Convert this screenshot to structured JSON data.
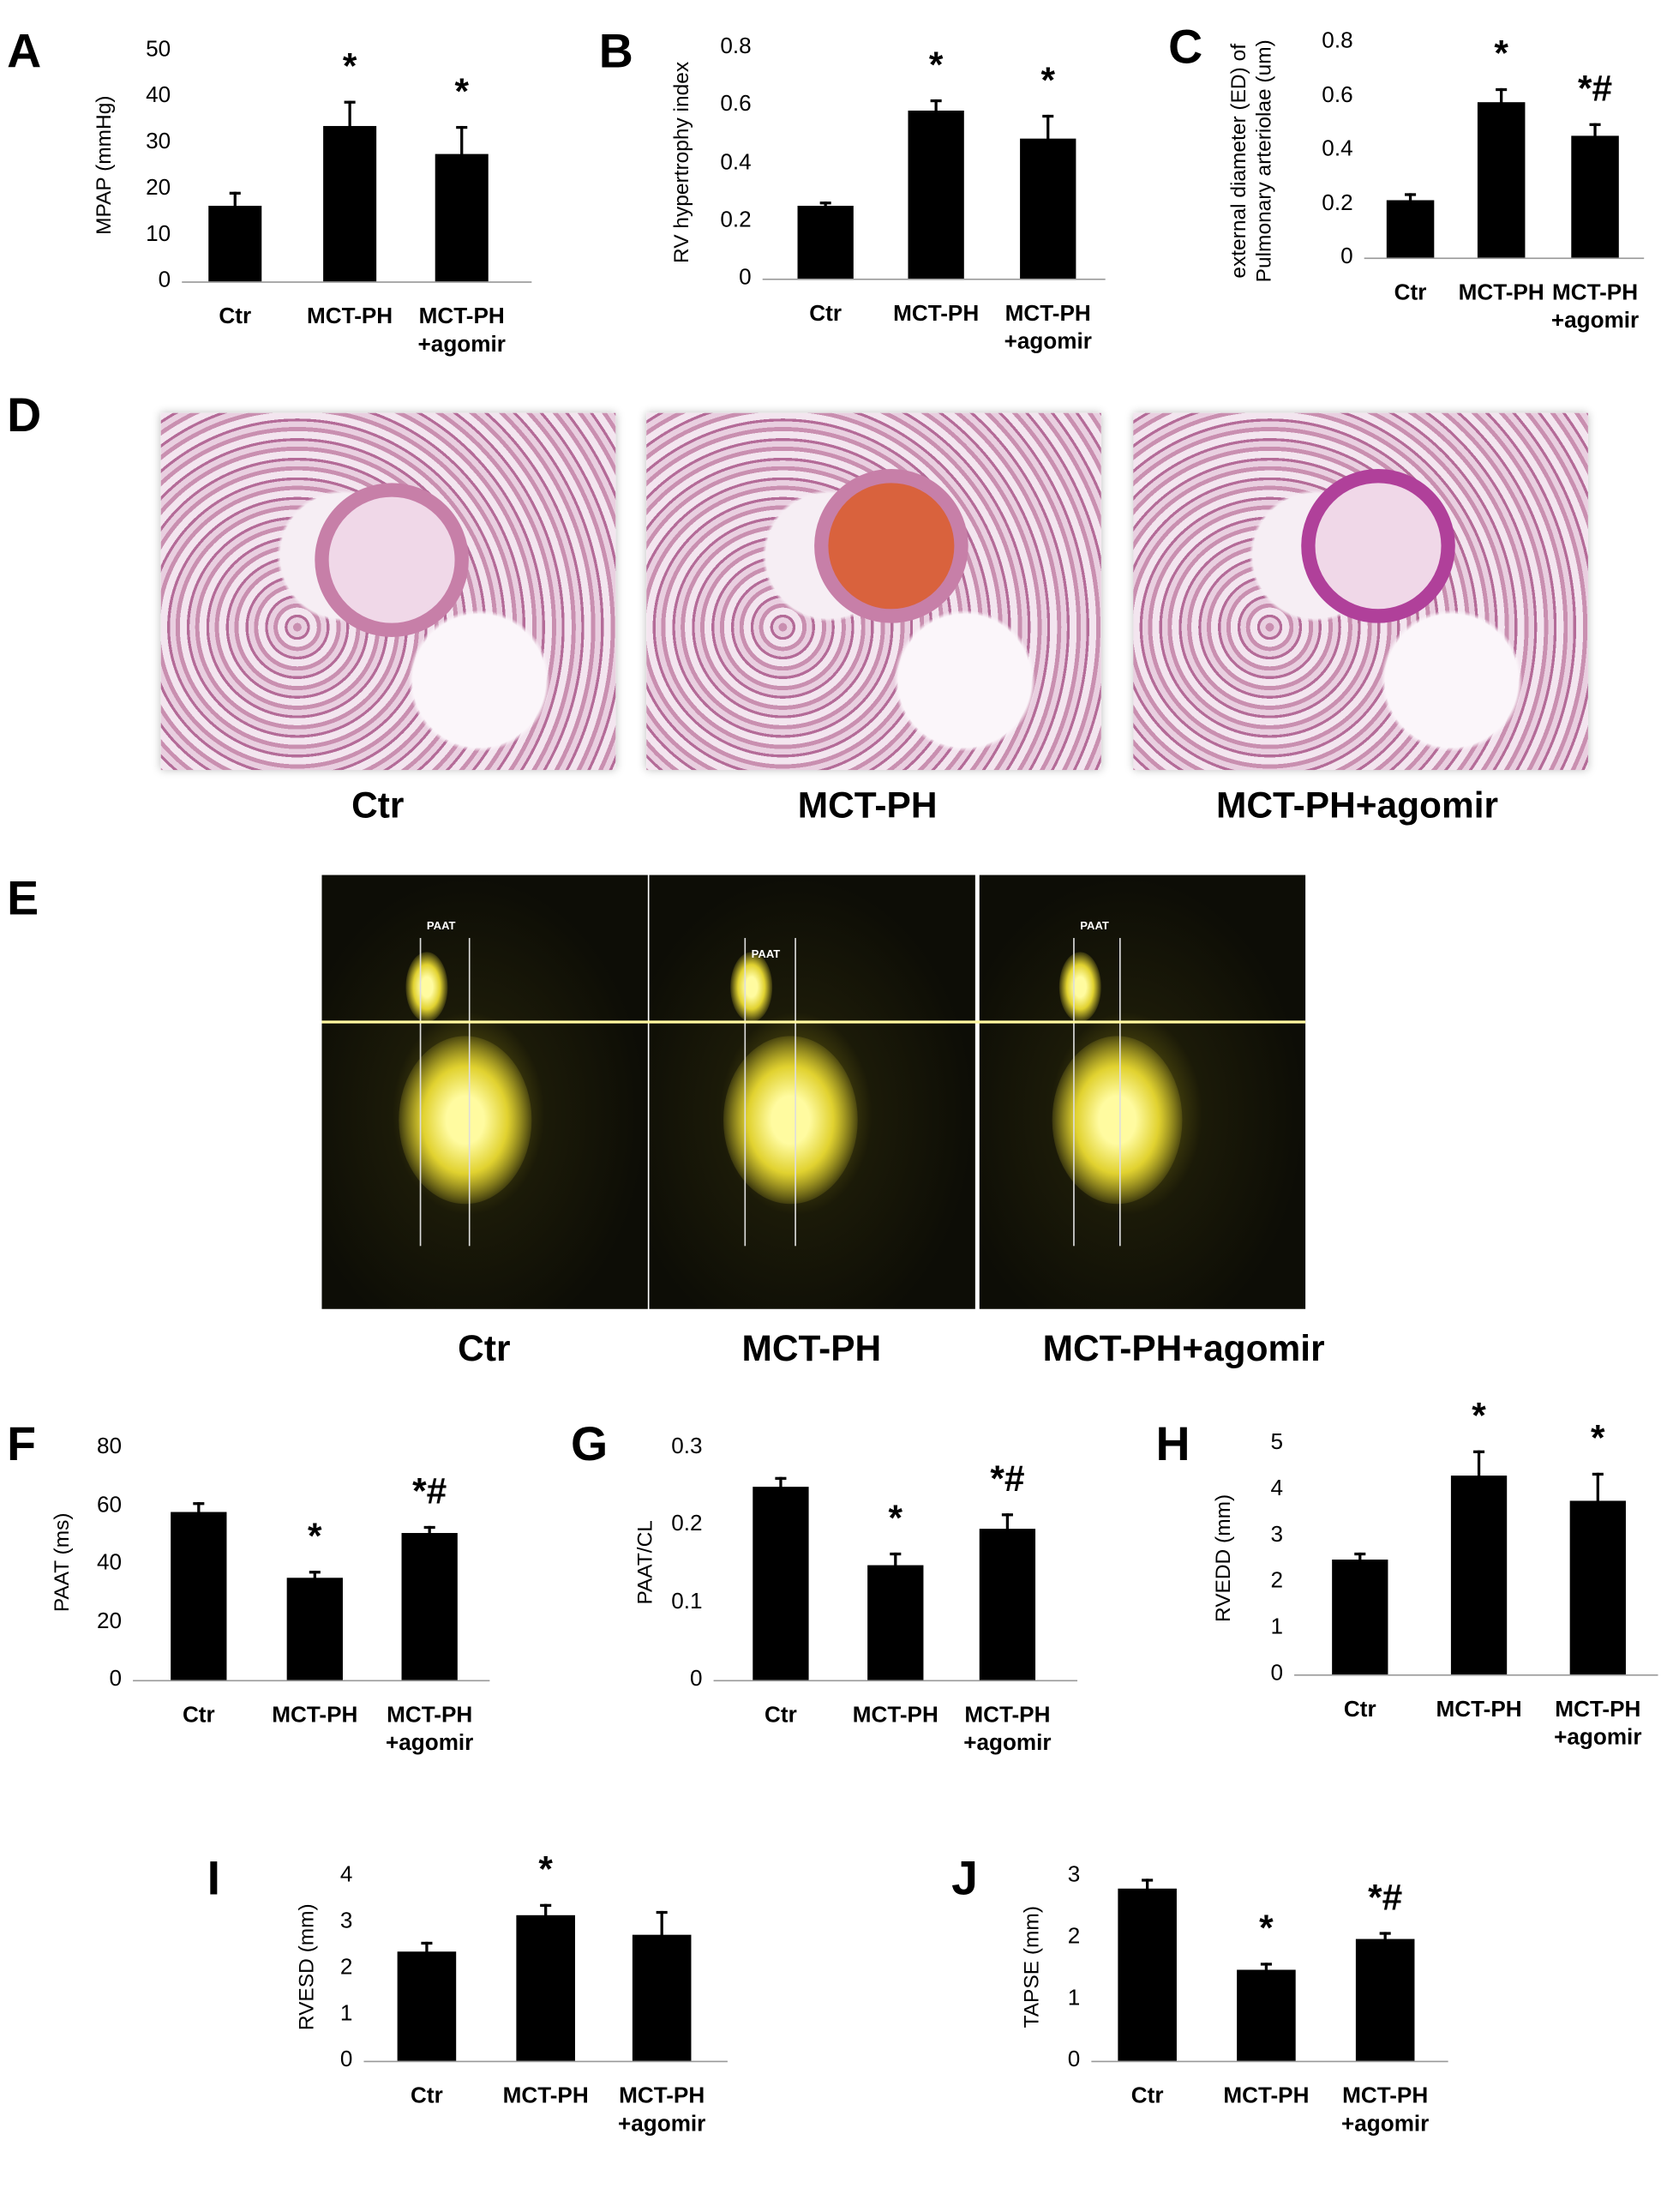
{
  "chart_data": [
    {
      "type": "bar",
      "panel": "A",
      "ylabel": "MPAP (mmHg)",
      "categories": [
        "Ctr",
        "MCT-PH",
        "MCT-PH\n+agomir"
      ],
      "values": [
        16.5,
        33.5,
        27.5
      ],
      "errors": [
        3,
        5.5,
        6
      ],
      "annotations": [
        null,
        "*",
        "*"
      ],
      "color": "#000000",
      "ylim": [
        0,
        50
      ],
      "yticks": [
        0,
        10,
        20,
        30,
        40,
        50
      ],
      "grid": false
    },
    {
      "type": "bar",
      "panel": "B",
      "ylabel": "RV hypertrophy index",
      "categories": [
        "Ctr",
        "MCT-PH",
        "MCT-PH\n+agomir"
      ],
      "values": [
        0.25,
        0.58,
        0.485
      ],
      "errors": [
        0.015,
        0.04,
        0.08
      ],
      "annotations": [
        null,
        "*",
        "*"
      ],
      "color": "#000000",
      "ylim": [
        0,
        0.8
      ],
      "yticks": [
        0,
        0.2,
        0.4,
        0.6,
        0.8
      ],
      "grid": false
    },
    {
      "type": "bar",
      "panel": "C",
      "ylabel": "external diameter (ED) of\nPulmonary arteriolae (um)",
      "categories": [
        "Ctr",
        "MCT-PH",
        "MCT-PH\n+agomir"
      ],
      "values": [
        0.215,
        0.575,
        0.45
      ],
      "errors": [
        0.025,
        0.055,
        0.05
      ],
      "annotations": [
        null,
        "*",
        "*#"
      ],
      "color": "#000000",
      "ylim": [
        0,
        0.8
      ],
      "yticks": [
        0,
        0.2,
        0.4,
        0.6,
        0.8
      ],
      "grid": false
    },
    {
      "type": "bar",
      "panel": "F",
      "ylabel": "PAAT (ms)",
      "categories": [
        "Ctr",
        "MCT-PH",
        "MCT-PH\n+agomir"
      ],
      "values": [
        58,
        35,
        50.5
      ],
      "errors": [
        3,
        2.5,
        2.5
      ],
      "annotations": [
        null,
        "*",
        "*#"
      ],
      "color": "#000000",
      "ylim": [
        0,
        80
      ],
      "yticks": [
        0,
        20,
        40,
        60,
        80
      ],
      "grid": false
    },
    {
      "type": "bar",
      "panel": "G",
      "ylabel": "PAAT/CL",
      "categories": [
        "Ctr",
        "MCT-PH",
        "MCT-PH\n+agomir"
      ],
      "values": [
        0.25,
        0.148,
        0.195
      ],
      "errors": [
        0.012,
        0.017,
        0.02
      ],
      "annotations": [
        null,
        "*",
        "*#"
      ],
      "color": "#000000",
      "ylim": [
        0,
        0.3
      ],
      "yticks": [
        0,
        0.1,
        0.2,
        0.3
      ],
      "grid": false
    },
    {
      "type": "bar",
      "panel": "H",
      "ylabel": "RVEDD (mm)",
      "categories": [
        "Ctr",
        "MCT-PH",
        "MCT-PH\n+agomir"
      ],
      "values": [
        2.5,
        4.3,
        3.75
      ],
      "errors": [
        0.15,
        0.55,
        0.6
      ],
      "annotations": [
        null,
        "*",
        "*"
      ],
      "color": "#000000",
      "ylim": [
        0,
        5
      ],
      "yticks": [
        0,
        1,
        2,
        3,
        4,
        5
      ],
      "grid": false
    },
    {
      "type": "bar",
      "panel": "I",
      "ylabel": "RVESD (mm)",
      "categories": [
        "Ctr",
        "MCT-PH",
        "MCT-PH\n+agomir"
      ],
      "values": [
        2.37,
        3.15,
        2.73
      ],
      "errors": [
        0.2,
        0.25,
        0.5
      ],
      "annotations": [
        null,
        "*",
        null
      ],
      "color": "#000000",
      "ylim": [
        0,
        4
      ],
      "yticks": [
        0,
        1,
        2,
        3,
        4
      ],
      "grid": false
    },
    {
      "type": "bar",
      "panel": "J",
      "ylabel": "TAPSE (mm)",
      "categories": [
        "Ctr",
        "MCT-PH",
        "MCT-PH\n+agomir"
      ],
      "values": [
        2.8,
        1.48,
        1.97
      ],
      "errors": [
        0.15,
        0.1,
        0.12
      ],
      "annotations": [
        null,
        "*",
        "*#"
      ],
      "color": "#000000",
      "ylim": [
        0,
        3
      ],
      "yticks": [
        0,
        1,
        2,
        3
      ],
      "grid": false
    }
  ],
  "histology": {
    "panel": "D",
    "captions": [
      "Ctr",
      "MCT-PH",
      "MCT-PH+agomir"
    ]
  },
  "echo": {
    "panel": "E",
    "captions": [
      "Ctr",
      "MCT-PH",
      "MCT-PH+agomir"
    ],
    "markers": [
      "PAAT",
      "PAAT",
      "PAAT"
    ]
  }
}
